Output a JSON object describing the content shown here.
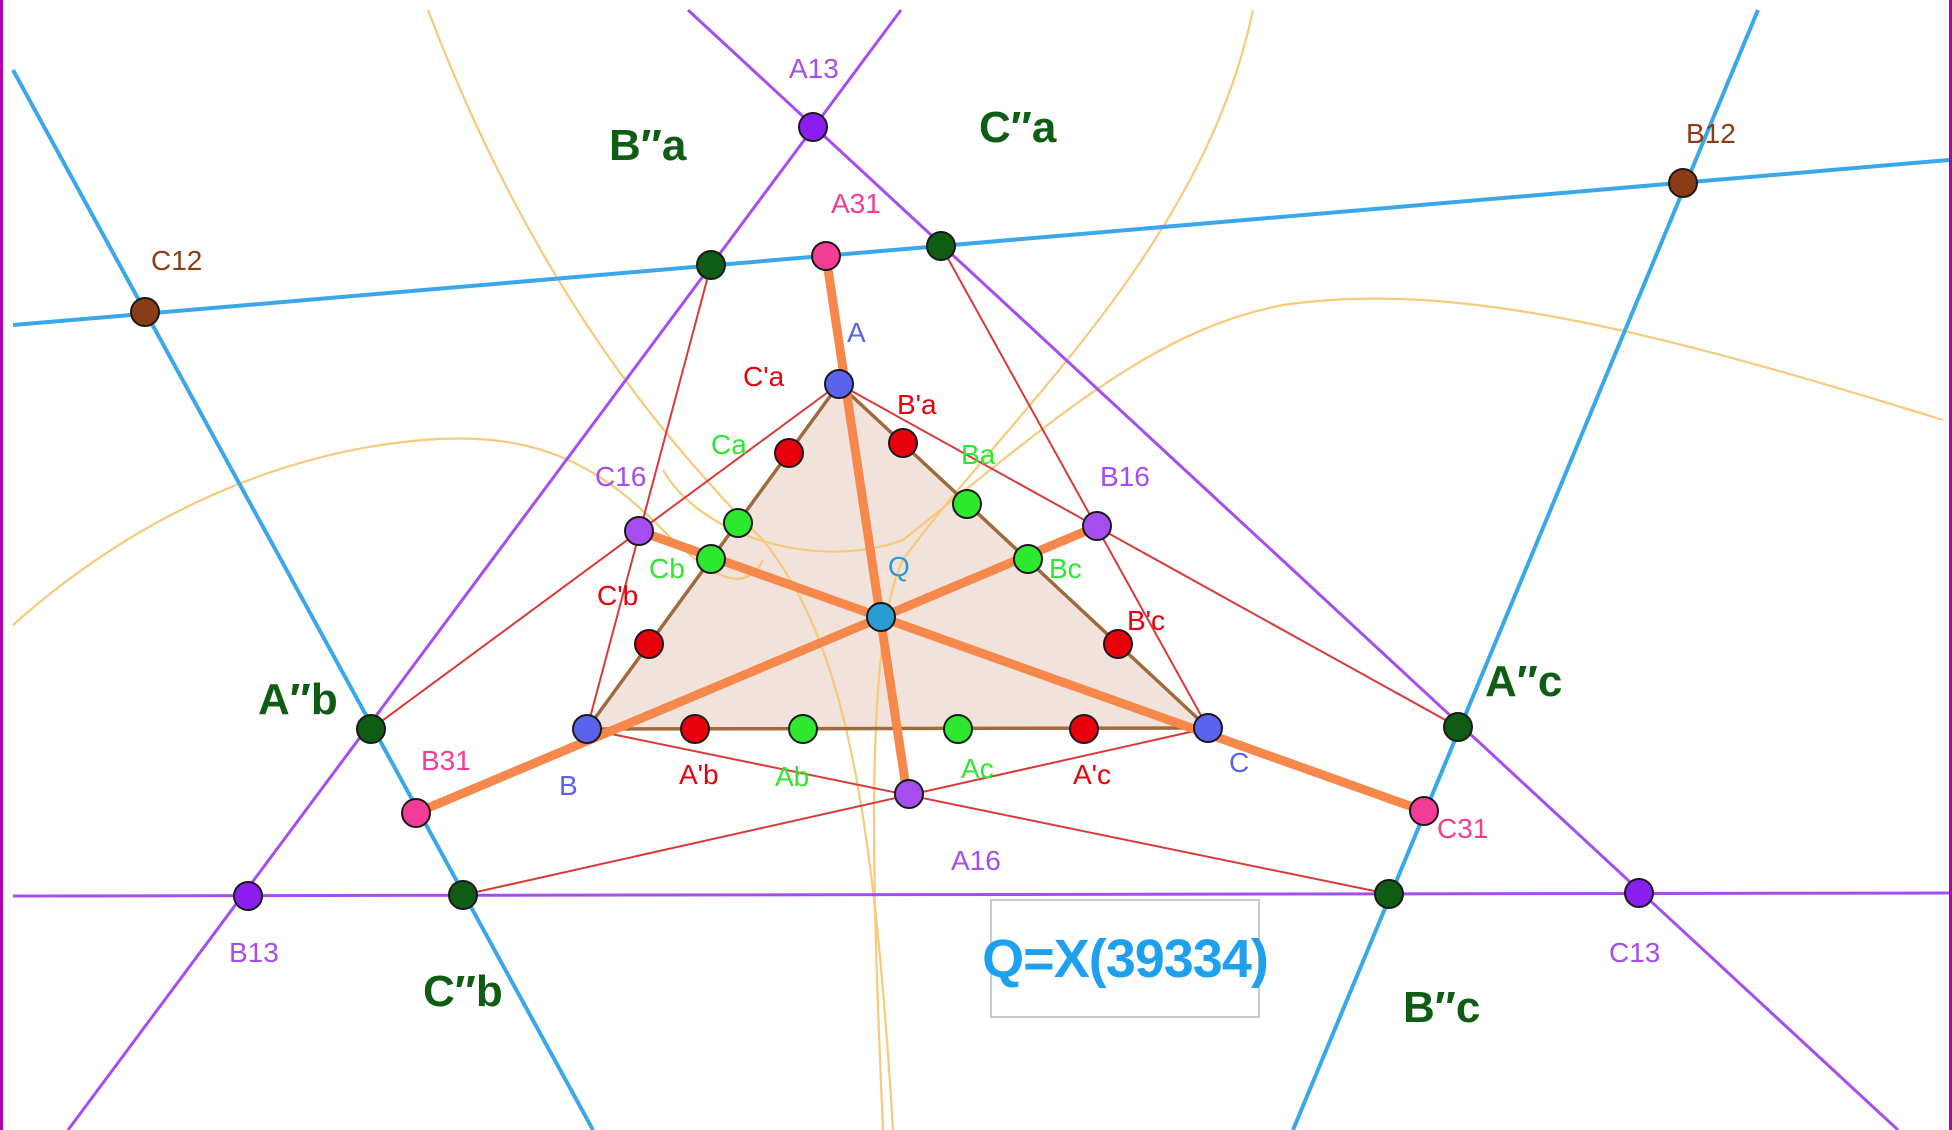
{
  "colors": {
    "blue_line": "#3aa8e8",
    "purple_line": "#a64df0",
    "thin_red": "#d83a3a",
    "thick_orange": "#f5884a",
    "brown_side": "#a06b3c",
    "conic": "#f7c97a",
    "triangle_fill": "#efe0d8",
    "dark_green": "#0f5c14",
    "bright_green": "#2ee82e",
    "red_point": "#e8000c",
    "magenta": "#f23c96",
    "vertex_blue": "#5a62ee",
    "brown_point": "#8a3c14",
    "q_point": "#2a9cd2",
    "caption": "#1ea0f0",
    "frame": "#b000b0"
  },
  "caption": "Q=X(39334)",
  "labels": {
    "A": "A",
    "B": "B",
    "C": "C",
    "Q": "Q",
    "A13": "A13",
    "B13": "B13",
    "C13": "C13",
    "A16": "A16",
    "B16": "B16",
    "C16": "C16",
    "A31": "A31",
    "B31": "B31",
    "C31": "C31",
    "B12": "B12",
    "C12": "C12",
    "Ba_pp": "B″a",
    "Ca_pp": "C″a",
    "Ab_pp": "A″b",
    "Ac_pp": "A″c",
    "Cb_pp": "C″b",
    "Bc_pp": "B″c",
    "Ca_p": "C'a",
    "Ba_p": "B'a",
    "Cb_p": "C'b",
    "Bc_p": "B'c",
    "Ab_p": "A'b",
    "Ac_p": "A'c",
    "Ca": "Ca",
    "Ba": "Ba",
    "Cb": "Cb",
    "Bc": "Bc",
    "Ab": "Ab",
    "Ac": "Ac"
  }
}
